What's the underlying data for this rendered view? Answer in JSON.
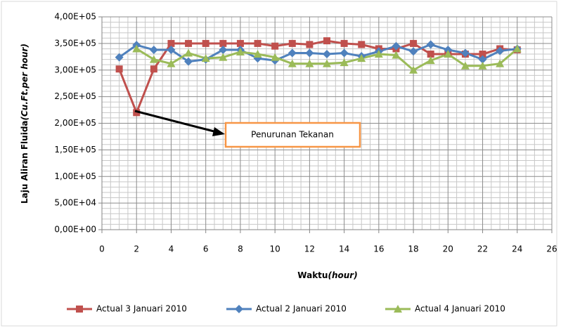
{
  "chart_data": {
    "type": "line",
    "xlabel": [
      "Waktu",
      "(hour)"
    ],
    "ylabel": [
      "Laju Aliran Fluida",
      "(Cu.Ft.per hour)"
    ],
    "annotation": "Penurunan Tekanan",
    "x": [
      1,
      2,
      3,
      4,
      5,
      6,
      7,
      8,
      9,
      10,
      11,
      12,
      13,
      14,
      15,
      16,
      17,
      18,
      19,
      20,
      21,
      22,
      23,
      24
    ],
    "series": [
      {
        "name": "Actual 3 Januari 2010",
        "color": "#c0504d",
        "marker": "square",
        "values": [
          302000,
          220000,
          302000,
          350000,
          350000,
          350000,
          350000,
          350000,
          350000,
          345000,
          350000,
          348000,
          355000,
          350000,
          348000,
          340000,
          340000,
          350000,
          330000,
          330000,
          330000,
          330000,
          340000,
          338000
        ]
      },
      {
        "name": "Actual 2 Januari 2010",
        "color": "#4f81bd",
        "marker": "diamond",
        "values": [
          324000,
          347000,
          338000,
          338000,
          316000,
          320000,
          338000,
          338000,
          322000,
          318000,
          332000,
          332000,
          330000,
          332000,
          326000,
          335000,
          345000,
          335000,
          348000,
          338000,
          332000,
          320000,
          336000,
          340000
        ]
      },
      {
        "name": "Actual 4 Januari 2010",
        "color": "#9bbb59",
        "marker": "triangle",
        "values": [
          null,
          340000,
          320000,
          312000,
          332000,
          322000,
          324000,
          334000,
          330000,
          324000,
          312000,
          312000,
          312000,
          314000,
          322000,
          330000,
          328000,
          300000,
          318000,
          330000,
          308000,
          308000,
          312000,
          340000
        ]
      }
    ],
    "xlim": [
      0,
      26
    ],
    "xticks": [
      0,
      2,
      4,
      6,
      8,
      10,
      12,
      14,
      16,
      18,
      20,
      22,
      24,
      26
    ],
    "ylim": [
      0,
      400000
    ],
    "yticks": [
      {
        "value": 0,
        "label": "0,00E+00"
      },
      {
        "value": 50000,
        "label": "5,00E+04"
      },
      {
        "value": 100000,
        "label": "1,00E+05"
      },
      {
        "value": 150000,
        "label": "1,50E+05"
      },
      {
        "value": 200000,
        "label": "2,00E+05"
      },
      {
        "value": 250000,
        "label": "2,50E+05"
      },
      {
        "value": 300000,
        "label": "3,00E+05"
      },
      {
        "value": 350000,
        "label": "3,50E+05"
      },
      {
        "value": 400000,
        "label": "4,00E+05"
      }
    ],
    "grid": true
  }
}
